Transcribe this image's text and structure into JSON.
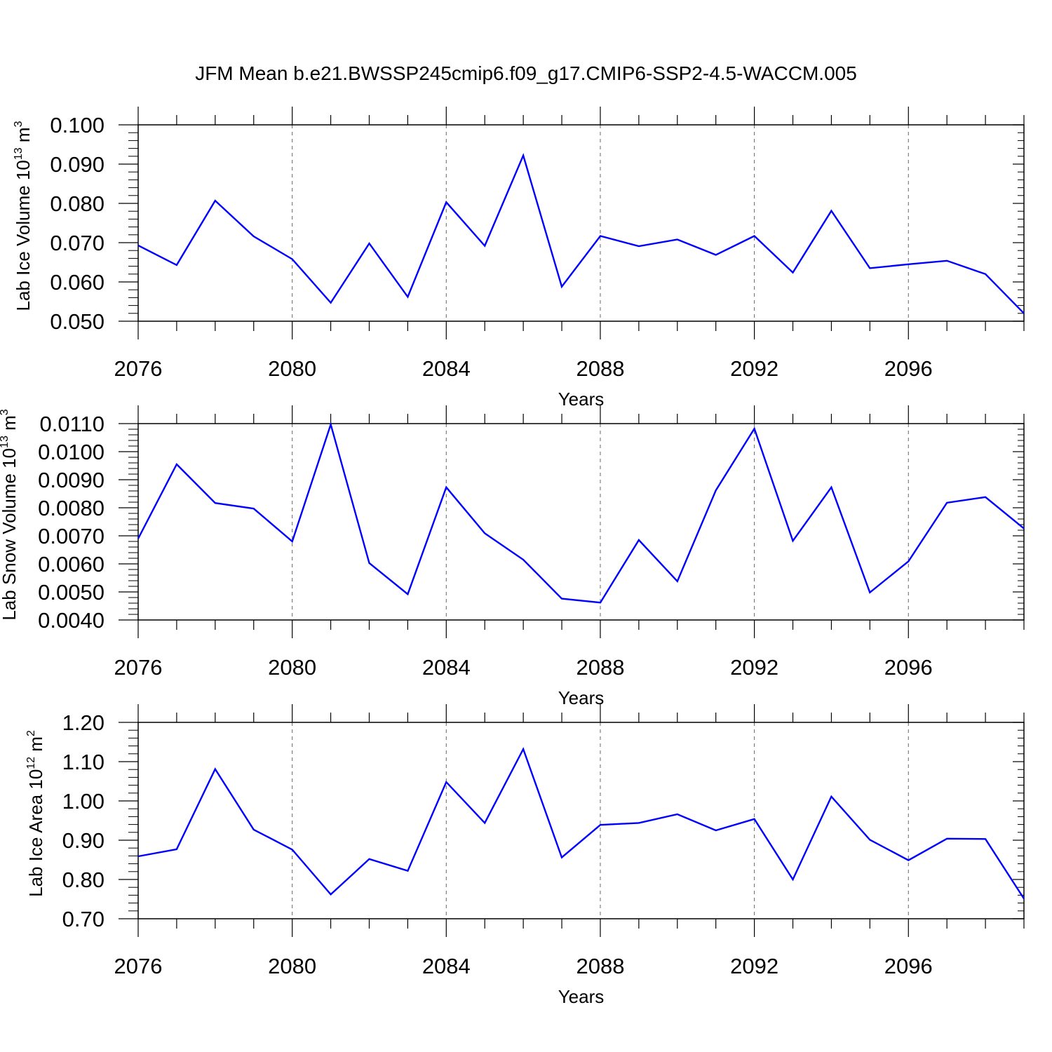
{
  "figure": {
    "title": "JFM Mean b.e21.BWSSP245cmip6.f09_g17.CMIP6-SSP2-4.5-WACCM.005",
    "line_color": "#0000ff"
  },
  "chart_data": [
    {
      "type": "line",
      "xlabel": "Years",
      "ylabel": "Lab Ice Volume 10",
      "ylabel_exp": "13",
      "ylabel_unit": " m",
      "ylabel_unit_exp": "3",
      "xlim": [
        2076,
        2099
      ],
      "ylim": [
        0.05,
        0.1
      ],
      "x_ticks": [
        "2076",
        "2080",
        "2084",
        "2088",
        "2092",
        "2096"
      ],
      "y_ticks": [
        "0.050",
        "0.060",
        "0.070",
        "0.080",
        "0.090",
        "0.100"
      ],
      "grid": "vertical dashed at major x ticks",
      "series": [
        {
          "color": "#0000ff",
          "x": [
            2076,
            2077,
            2078,
            2079,
            2080,
            2081,
            2082,
            2083,
            2084,
            2085,
            2086,
            2087,
            2088,
            2089,
            2090,
            2091,
            2092,
            2093,
            2094,
            2095,
            2096,
            2097,
            2098,
            2099
          ],
          "y": [
            0.0693,
            0.0643,
            0.0807,
            0.0716,
            0.0658,
            0.0547,
            0.0698,
            0.0562,
            0.0803,
            0.0692,
            0.0922,
            0.0588,
            0.0717,
            0.0691,
            0.0708,
            0.0669,
            0.0717,
            0.0624,
            0.0781,
            0.0635,
            0.0645,
            0.0654,
            0.062,
            0.052
          ]
        }
      ]
    },
    {
      "type": "line",
      "xlabel": "Years",
      "ylabel": "Lab Snow Volume 10",
      "ylabel_exp": "13",
      "ylabel_unit": " m",
      "ylabel_unit_exp": "3",
      "xlim": [
        2076,
        2099
      ],
      "ylim": [
        0.004,
        0.011
      ],
      "x_ticks": [
        "2076",
        "2080",
        "2084",
        "2088",
        "2092",
        "2096"
      ],
      "y_ticks": [
        "0.0040",
        "0.0050",
        "0.0060",
        "0.0070",
        "0.0080",
        "0.0090",
        "0.0100",
        "0.0110"
      ],
      "grid": "vertical dashed at major x ticks",
      "series": [
        {
          "color": "#0000ff",
          "x": [
            2076,
            2077,
            2078,
            2079,
            2080,
            2081,
            2082,
            2083,
            2084,
            2085,
            2086,
            2087,
            2088,
            2089,
            2090,
            2091,
            2092,
            2093,
            2094,
            2095,
            2096,
            2097,
            2098,
            2099
          ],
          "y": [
            0.0069,
            0.00955,
            0.00817,
            0.00797,
            0.0068,
            0.01097,
            0.00603,
            0.00492,
            0.00873,
            0.00709,
            0.00615,
            0.00476,
            0.00462,
            0.00685,
            0.00538,
            0.00862,
            0.01082,
            0.00682,
            0.00873,
            0.00498,
            0.00609,
            0.00818,
            0.00838,
            0.00726
          ]
        }
      ]
    },
    {
      "type": "line",
      "xlabel": "Years",
      "ylabel": "Lab Ice Area 10",
      "ylabel_exp": "12",
      "ylabel_unit": " m",
      "ylabel_unit_exp": "2",
      "xlim": [
        2076,
        2099
      ],
      "ylim": [
        0.7,
        1.2
      ],
      "x_ticks": [
        "2076",
        "2080",
        "2084",
        "2088",
        "2092",
        "2096"
      ],
      "y_ticks": [
        "0.70",
        "0.80",
        "0.90",
        "1.00",
        "1.10",
        "1.20"
      ],
      "grid": "vertical dashed at major x ticks",
      "series": [
        {
          "color": "#0000ff",
          "x": [
            2076,
            2077,
            2078,
            2079,
            2080,
            2081,
            2082,
            2083,
            2084,
            2085,
            2086,
            2087,
            2088,
            2089,
            2090,
            2091,
            2092,
            2093,
            2094,
            2095,
            2096,
            2097,
            2098,
            2099
          ],
          "y": [
            0.859,
            0.877,
            1.081,
            0.927,
            0.876,
            0.762,
            0.852,
            0.822,
            1.048,
            0.944,
            1.132,
            0.856,
            0.939,
            0.944,
            0.966,
            0.925,
            0.954,
            0.8,
            1.011,
            0.901,
            0.849,
            0.904,
            0.903,
            0.751
          ]
        }
      ]
    }
  ]
}
